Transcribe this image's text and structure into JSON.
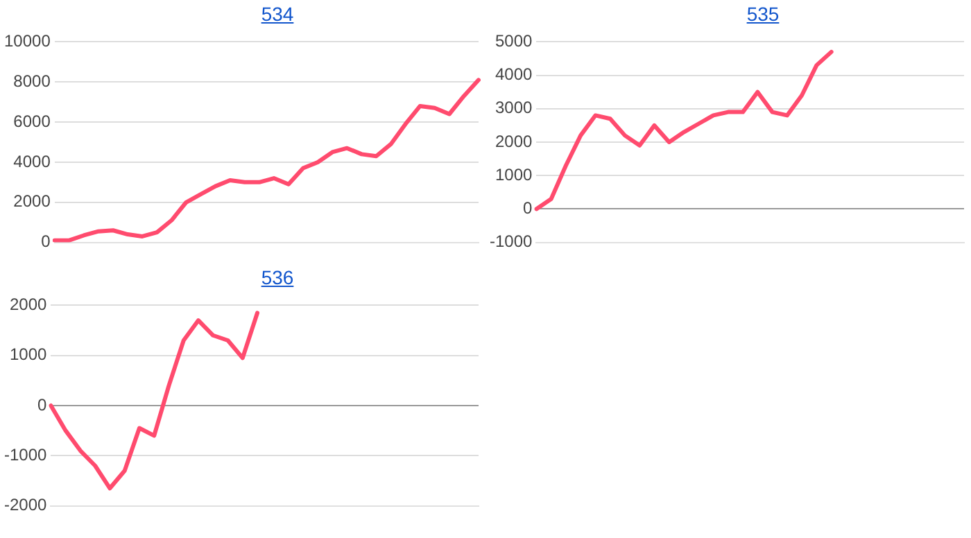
{
  "chart_data": [
    {
      "type": "line",
      "title": "534",
      "categories": [
        null,
        null,
        null,
        null,
        null,
        null,
        null,
        null,
        null,
        null,
        null,
        null,
        null,
        null,
        null,
        null,
        null,
        null,
        null,
        null,
        null,
        null,
        null,
        null,
        null,
        null,
        null,
        null,
        null,
        null
      ],
      "series": [
        {
          "color": "#ff4b6e",
          "values": [
            100,
            100,
            350,
            550,
            600,
            400,
            300,
            500,
            1100,
            2000,
            2400,
            2800,
            3100,
            3000,
            3000,
            3200,
            2900,
            3700,
            4000,
            4500,
            4700,
            4400,
            4300,
            4900,
            5900,
            6800,
            6700,
            6400,
            7300,
            8100
          ]
        }
      ],
      "ylim": [
        0,
        10000
      ],
      "yticks": [
        0,
        2000,
        4000,
        6000,
        8000,
        10000
      ],
      "grid": "y",
      "tick_labels": "y"
    },
    {
      "type": "line",
      "title": "535",
      "categories": [
        null,
        null,
        null,
        null,
        null,
        null,
        null,
        null,
        null,
        null,
        null,
        null,
        null,
        null,
        null,
        null,
        null,
        null,
        null,
        null,
        null,
        null,
        null,
        null,
        null,
        null,
        null,
        null,
        null,
        null
      ],
      "series": [
        {
          "color": "#ff4b6e",
          "values": [
            0,
            300,
            1300,
            2200,
            2800,
            2700,
            2200,
            1900,
            2500,
            2000,
            2300,
            2550,
            2800,
            2900,
            2900,
            3500,
            2900,
            2800,
            3400,
            4300,
            4700,
            null,
            null,
            null,
            null,
            null,
            null,
            null,
            null,
            null
          ]
        }
      ],
      "ylim": [
        -1000,
        5000
      ],
      "yticks": [
        -1000,
        0,
        1000,
        2000,
        3000,
        4000,
        5000
      ],
      "grid": "y",
      "tick_labels": "y"
    },
    {
      "type": "line",
      "title": "536",
      "categories": [
        null,
        null,
        null,
        null,
        null,
        null,
        null,
        null,
        null,
        null,
        null,
        null,
        null,
        null,
        null,
        null,
        null,
        null,
        null,
        null,
        null,
        null,
        null,
        null,
        null,
        null,
        null,
        null,
        null,
        null
      ],
      "series": [
        {
          "color": "#ff4b6e",
          "values": [
            0,
            -500,
            -900,
            -1200,
            -1650,
            -1300,
            -450,
            -600,
            400,
            1300,
            1700,
            1400,
            1300,
            950,
            1850,
            null,
            null,
            null,
            null,
            null,
            null,
            null,
            null,
            null,
            null,
            null,
            null,
            null,
            null,
            null
          ]
        }
      ],
      "ylim": [
        -2000,
        2000
      ],
      "yticks": [
        -2000,
        -1000,
        0,
        1000,
        2000
      ],
      "grid": "y",
      "tick_labels": "y"
    }
  ]
}
